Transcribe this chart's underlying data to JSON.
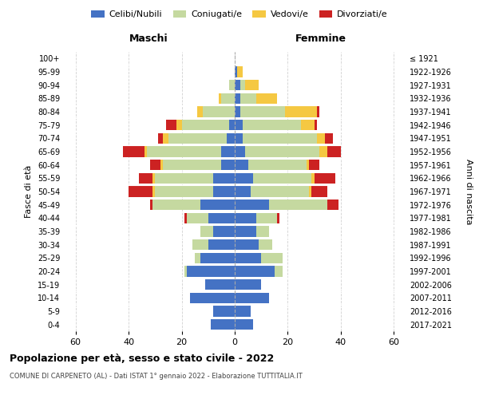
{
  "age_groups": [
    "0-4",
    "5-9",
    "10-14",
    "15-19",
    "20-24",
    "25-29",
    "30-34",
    "35-39",
    "40-44",
    "45-49",
    "50-54",
    "55-59",
    "60-64",
    "65-69",
    "70-74",
    "75-79",
    "80-84",
    "85-89",
    "90-94",
    "95-99",
    "100+"
  ],
  "birth_years": [
    "2017-2021",
    "2012-2016",
    "2007-2011",
    "2002-2006",
    "1997-2001",
    "1992-1996",
    "1987-1991",
    "1982-1986",
    "1977-1981",
    "1972-1976",
    "1967-1971",
    "1962-1966",
    "1957-1961",
    "1952-1956",
    "1947-1951",
    "1942-1946",
    "1937-1941",
    "1932-1936",
    "1927-1931",
    "1922-1926",
    "≤ 1921"
  ],
  "colors": {
    "celibi": "#4472c4",
    "coniugati": "#c5d9a0",
    "vedovi": "#f5c842",
    "divorziati": "#cc2222"
  },
  "males": {
    "celibi": [
      9,
      8,
      17,
      11,
      18,
      13,
      10,
      8,
      10,
      13,
      8,
      8,
      5,
      5,
      3,
      2,
      0,
      0,
      0,
      0,
      0
    ],
    "coniugati": [
      0,
      0,
      0,
      0,
      1,
      2,
      6,
      5,
      8,
      18,
      22,
      22,
      22,
      28,
      22,
      18,
      12,
      5,
      2,
      0,
      0
    ],
    "vedovi": [
      0,
      0,
      0,
      0,
      0,
      0,
      0,
      0,
      0,
      0,
      1,
      1,
      1,
      1,
      2,
      2,
      2,
      1,
      0,
      0,
      0
    ],
    "divorziati": [
      0,
      0,
      0,
      0,
      0,
      0,
      0,
      0,
      1,
      1,
      9,
      5,
      4,
      8,
      2,
      4,
      0,
      0,
      0,
      0,
      0
    ]
  },
  "females": {
    "celibi": [
      7,
      6,
      13,
      10,
      15,
      10,
      9,
      8,
      8,
      13,
      6,
      7,
      5,
      4,
      3,
      3,
      2,
      2,
      2,
      1,
      0
    ],
    "coniugati": [
      0,
      0,
      0,
      0,
      3,
      8,
      5,
      5,
      8,
      22,
      22,
      22,
      22,
      28,
      28,
      22,
      17,
      6,
      2,
      0,
      0
    ],
    "vedovi": [
      0,
      0,
      0,
      0,
      0,
      0,
      0,
      0,
      0,
      0,
      1,
      1,
      1,
      3,
      3,
      5,
      12,
      8,
      5,
      2,
      0
    ],
    "divorziati": [
      0,
      0,
      0,
      0,
      0,
      0,
      0,
      0,
      1,
      4,
      6,
      8,
      4,
      5,
      3,
      1,
      1,
      0,
      0,
      0,
      0
    ]
  },
  "xlim": 65,
  "title": "Popolazione per età, sesso e stato civile - 2022",
  "subtitle": "COMUNE DI CARPENETO (AL) - Dati ISTAT 1° gennaio 2022 - Elaborazione TUTTITALIA.IT",
  "ylabel_left": "Fasce di età",
  "ylabel_right": "Anni di nascita",
  "xlabel_left": "Maschi",
  "xlabel_right": "Femmine",
  "bg_color": "#ffffff",
  "grid_color": "#cccccc"
}
